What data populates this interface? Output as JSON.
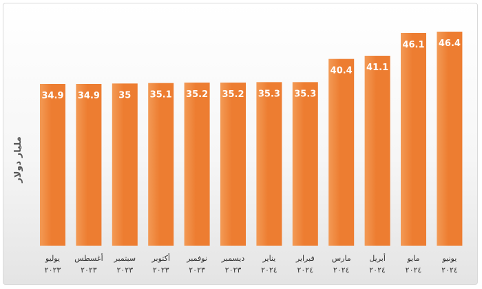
{
  "chart_data": {
    "type": "bar",
    "title": "",
    "xlabel": "",
    "ylabel": "مليار دولار",
    "categories": [
      {
        "month": "يوليو",
        "year": "٢٠٢٣"
      },
      {
        "month": "أغسطس",
        "year": "٢٠٢٣"
      },
      {
        "month": "سبتمبر",
        "year": "٢٠٢٣"
      },
      {
        "month": "أكتوبر",
        "year": "٢٠٢٣"
      },
      {
        "month": "نوفمبر",
        "year": "٢٠٢٣"
      },
      {
        "month": "ديسمبر",
        "year": "٢٠٢٣"
      },
      {
        "month": "يناير",
        "year": "٢٠٢٤"
      },
      {
        "month": "فبراير",
        "year": "٢٠٢٤"
      },
      {
        "month": "مارس",
        "year": "٢٠٢٤"
      },
      {
        "month": "أبريل",
        "year": "٢٠٢٤"
      },
      {
        "month": "مايو",
        "year": "٢٠٢٤"
      },
      {
        "month": "يونيو",
        "year": "٢٠٢٤"
      }
    ],
    "values": [
      34.9,
      34.9,
      35,
      35.1,
      35.2,
      35.2,
      35.3,
      35.3,
      40.4,
      41.1,
      46.1,
      46.4
    ],
    "value_labels": [
      "34.9",
      "34.9",
      "35",
      "35.1",
      "35.2",
      "35.2",
      "35.3",
      "35.3",
      "40.4",
      "41.1",
      "46.1",
      "46.4"
    ],
    "bar_color": "#ED7D31",
    "bar_color_light": "#F39A55",
    "grid": false,
    "legend": "none"
  }
}
